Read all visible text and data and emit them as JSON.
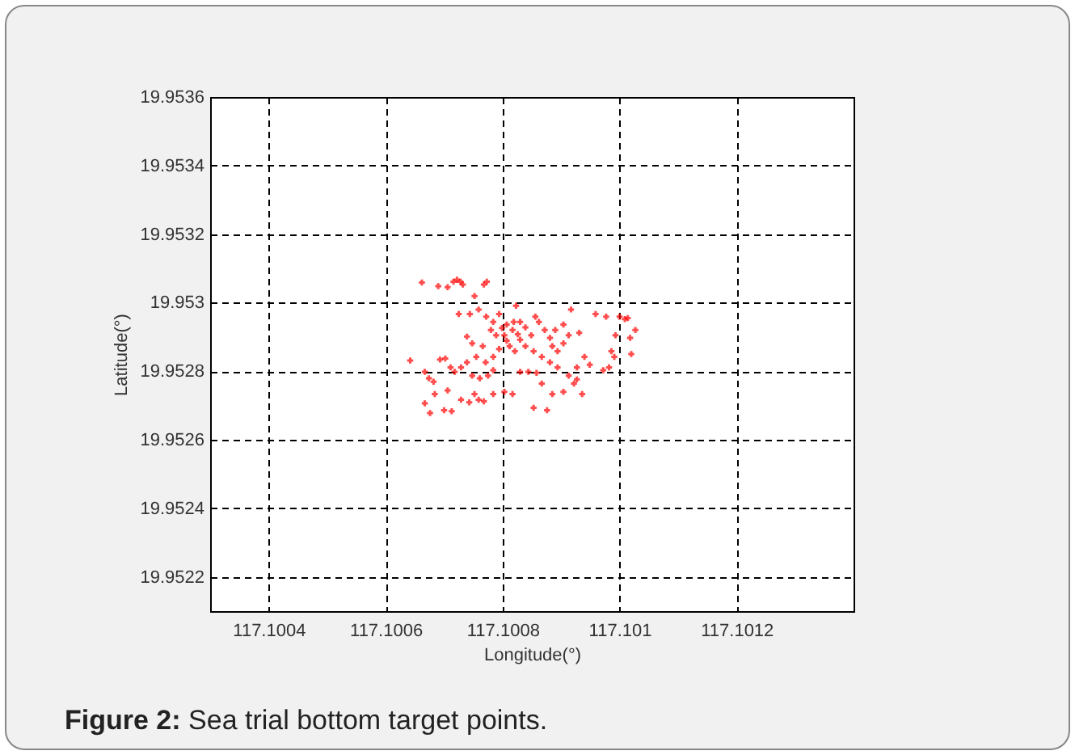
{
  "chart_data": {
    "type": "scatter",
    "xlabel": "Longitude(°)",
    "ylabel": "Latitude(°)",
    "annotations": [
      "Figure 2: Sea trial bottom target points."
    ],
    "xlim": [
      117.1003,
      117.1014
    ],
    "xticks": [
      117.1004,
      117.1006,
      117.1008,
      117.101,
      117.1012
    ],
    "ylim": [
      19.9521,
      19.9536
    ],
    "yticks": [
      19.9522,
      19.9524,
      19.9526,
      19.9528,
      19.953,
      19.9532,
      19.9534,
      19.9536
    ],
    "grid": true,
    "marker": "cross",
    "legend": false,
    "series": [
      {
        "color": "#ff0000",
        "x": [
          117.100662,
          117.10069,
          117.100706,
          117.100716,
          117.100722,
          117.100728,
          117.100732,
          117.100768,
          117.100773,
          117.100752,
          117.100642,
          117.100667,
          117.100674,
          117.100682,
          117.100684,
          117.100667,
          117.100676,
          117.1007,
          117.100713,
          117.100693,
          117.100702,
          117.100711,
          117.100718,
          117.100729,
          117.100739,
          117.100706,
          117.100729,
          117.100743,
          117.100752,
          117.100759,
          117.100768,
          117.100748,
          117.100761,
          117.100775,
          117.100784,
          117.100755,
          117.100766,
          117.10078,
          117.100739,
          117.100748,
          117.100725,
          117.100744,
          117.100759,
          117.100772,
          117.100784,
          117.100794,
          117.100803,
          117.100812,
          117.100823,
          117.100789,
          117.100799,
          117.100807,
          117.100817,
          117.100826,
          117.10083,
          117.100839,
          117.100849,
          117.100856,
          117.100862,
          117.100872,
          117.100881,
          117.100885,
          117.100894,
          117.100904,
          117.100913,
          117.100917,
          117.100931,
          117.10094,
          117.100949,
          117.100927,
          117.100913,
          117.100922,
          117.100904,
          117.100885,
          117.100876,
          117.100853,
          117.100867,
          117.100858,
          117.100844,
          117.10083,
          117.100817,
          117.100803,
          117.100784,
          117.100959,
          117.100977,
          117.101,
          117.101009,
          117.101014,
          117.101027,
          117.101018,
          117.10102,
          117.100993,
          117.100986,
          117.100991,
          117.100982,
          117.100972,
          117.100936,
          117.100927,
          117.10083,
          117.100819,
          117.100807,
          117.100794,
          117.100821,
          117.100839,
          117.100853,
          117.100867,
          117.100881,
          117.100894,
          117.100784,
          117.100771,
          117.100904,
          117.10089
        ],
        "values": [
          19.953059,
          19.953048,
          19.953045,
          19.953061,
          19.953067,
          19.953061,
          19.953053,
          19.953053,
          19.953061,
          19.953019,
          19.952831,
          19.952798,
          19.952779,
          19.952769,
          19.952733,
          19.952706,
          19.952678,
          19.952686,
          19.952683,
          19.952834,
          19.952837,
          19.952811,
          19.952798,
          19.952811,
          19.952826,
          19.952744,
          19.952717,
          19.952709,
          19.952733,
          19.952717,
          19.952712,
          19.952787,
          19.952779,
          19.952787,
          19.952803,
          19.952842,
          19.952873,
          19.95292,
          19.952901,
          19.952881,
          19.952967,
          19.952967,
          19.95298,
          19.952959,
          19.952944,
          19.952967,
          19.952905,
          19.952873,
          19.952991,
          19.952905,
          19.952926,
          19.952936,
          19.95292,
          19.952908,
          19.952892,
          19.952928,
          19.952905,
          19.952959,
          19.952944,
          19.95292,
          19.952897,
          19.952873,
          19.952858,
          19.952881,
          19.952905,
          19.95298,
          19.952912,
          19.952842,
          19.952819,
          19.952811,
          19.952787,
          19.952764,
          19.95274,
          19.952733,
          19.952686,
          19.952693,
          19.952764,
          19.952795,
          19.952798,
          19.952798,
          19.952733,
          19.95274,
          19.952733,
          19.952967,
          19.952959,
          19.952959,
          19.952952,
          19.952955,
          19.95292,
          19.952897,
          19.95285,
          19.952905,
          19.952858,
          19.952842,
          19.952811,
          19.952803,
          19.952733,
          19.952776,
          19.952944,
          19.952944,
          19.952889,
          19.952865,
          19.952858,
          19.952873,
          19.952858,
          19.952842,
          19.952826,
          19.952811,
          19.952842,
          19.952826,
          19.952936,
          19.95292
        ]
      }
    ]
  }
}
